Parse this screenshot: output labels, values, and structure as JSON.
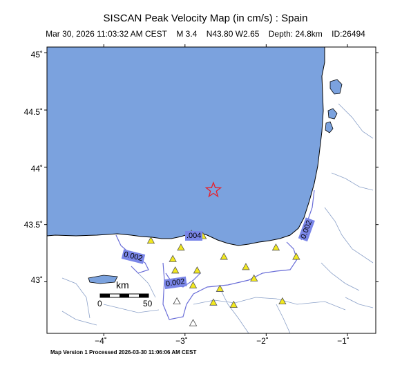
{
  "header": {
    "title": "SISCAN Peak Velocity Map (in cm/s) : Spain",
    "date": "Mar 30, 2026 11:03:32 AM CEST",
    "magnitude": "M 3.4",
    "location": "N43.80 W2.65",
    "depth": "Depth: 24.8km",
    "event_id": "ID:26494"
  },
  "axes": {
    "y_ticks": [
      "45˚",
      "44.5˚",
      "44˚",
      "43.5˚",
      "43˚"
    ],
    "x_ticks": [
      "−4˚",
      "−3˚",
      "−2˚",
      "−1˚"
    ]
  },
  "map": {
    "lon_range": [
      -4.7,
      -0.65
    ],
    "lat_range": [
      42.55,
      45.05
    ],
    "epicenter": {
      "lon": -2.65,
      "lat": 43.8,
      "color": "#e8202a"
    },
    "sea_color": "#7ba2de",
    "contour_color": "#6a6ed8",
    "contour_labels": [
      "0.002",
      "0.002",
      "0.002",
      ".004"
    ],
    "scale_bar": {
      "title": "km",
      "start": "0",
      "end": "50"
    },
    "stations": [
      {
        "lon": -3.42,
        "lat": 43.36,
        "active": true
      },
      {
        "lon": -3.05,
        "lat": 43.3,
        "active": true
      },
      {
        "lon": -2.92,
        "lat": 43.42,
        "active": true
      },
      {
        "lon": -2.78,
        "lat": 43.4,
        "active": true
      },
      {
        "lon": -3.15,
        "lat": 43.2,
        "active": true
      },
      {
        "lon": -3.12,
        "lat": 43.1,
        "active": true
      },
      {
        "lon": -2.85,
        "lat": 43.1,
        "active": true
      },
      {
        "lon": -2.52,
        "lat": 43.22,
        "active": true
      },
      {
        "lon": -2.25,
        "lat": 43.13,
        "active": true
      },
      {
        "lon": -1.88,
        "lat": 43.3,
        "active": true
      },
      {
        "lon": -1.63,
        "lat": 43.22,
        "active": true
      },
      {
        "lon": -2.15,
        "lat": 43.03,
        "active": true
      },
      {
        "lon": -2.9,
        "lat": 42.97,
        "active": true
      },
      {
        "lon": -2.57,
        "lat": 42.94,
        "active": true
      },
      {
        "lon": -2.65,
        "lat": 42.82,
        "active": true
      },
      {
        "lon": -2.4,
        "lat": 42.8,
        "active": true
      },
      {
        "lon": -1.8,
        "lat": 42.83,
        "active": true
      },
      {
        "lon": -3.1,
        "lat": 42.83,
        "active": false
      },
      {
        "lon": -2.9,
        "lat": 42.64,
        "active": false
      }
    ]
  },
  "footer": "Map Version 1 Processed 2026-03-30 11:06:06 AM CEST"
}
